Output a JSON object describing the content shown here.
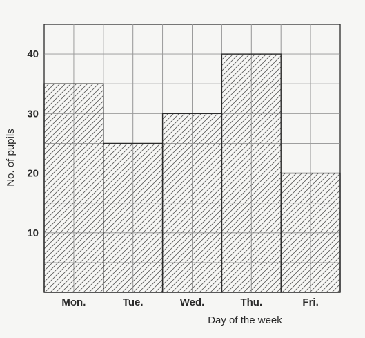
{
  "chart_data": {
    "type": "bar",
    "categories": [
      "Mon.",
      "Tue.",
      "Wed.",
      "Thu.",
      "Fri."
    ],
    "values": [
      35,
      25,
      30,
      40,
      20
    ],
    "title": "",
    "xlabel": "Day of the week",
    "ylabel": "No. of pupils",
    "ylim": [
      0,
      45
    ],
    "yticks": [
      10,
      20,
      30,
      40
    ],
    "grid": true,
    "bar_fill": "diagonal-hatch",
    "colors": {
      "line": "#2b2b2b",
      "grid": "#9a9a9a",
      "hatch": "#555555",
      "background": "#f6f6f4"
    }
  }
}
